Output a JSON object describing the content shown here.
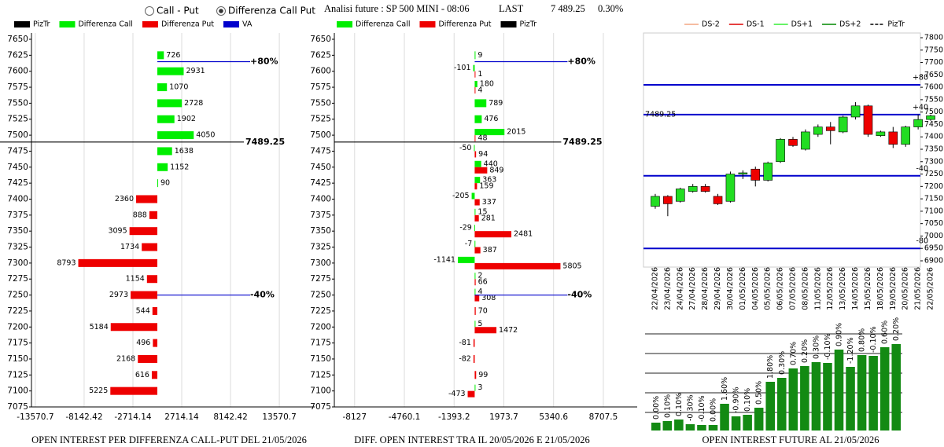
{
  "header": {
    "options": [
      "Call - Put",
      "Differenza Call Put"
    ],
    "selected": 1,
    "title": "Analisi future : SP 500 MINI - 08:06",
    "last_label": "LAST",
    "last": "7 489.25",
    "change": "0.30%"
  },
  "chart_data": [
    {
      "type": "bar",
      "orientation": "horizontal",
      "title": "OPEN INTEREST PER DIFFERENZA CALL-PUT  DEL 21/05/2026",
      "categories": [
        7650,
        7625,
        7600,
        7575,
        7550,
        7525,
        7500,
        7475,
        7450,
        7425,
        7400,
        7375,
        7350,
        7325,
        7300,
        7275,
        7250,
        7225,
        7200,
        7175,
        7150,
        7125,
        7100,
        7075
      ],
      "series": [
        {
          "name": "Differenza Call",
          "color": "#00ee00",
          "values": [
            null,
            726,
            2931,
            1070,
            2728,
            1902,
            4050,
            1638,
            1152,
            90,
            null,
            null,
            null,
            null,
            null,
            null,
            null,
            null,
            null,
            null,
            null,
            null,
            null,
            null
          ]
        },
        {
          "name": "Differenza Put",
          "color": "#ee0000",
          "values": [
            null,
            null,
            null,
            null,
            null,
            null,
            null,
            null,
            null,
            null,
            -2360,
            -888,
            -3095,
            -1734,
            -8793,
            -1154,
            -2973,
            -544,
            -5184,
            -496,
            -2168,
            -616,
            -5225,
            null
          ],
          "value_labels": [
            null,
            null,
            null,
            null,
            null,
            null,
            null,
            null,
            null,
            null,
            "2360",
            "888",
            "3095",
            "1734",
            "8793",
            "1154",
            "2973",
            "544",
            "5184",
            "496",
            "2168",
            "616",
            "5225",
            null
          ]
        }
      ],
      "lines": [
        {
          "name": "PizTr",
          "color": "#000000",
          "value": 7489.25
        },
        {
          "name": "VA",
          "color": "#0000cc",
          "levels": [
            {
              "label": "+80%",
              "value": 7615
            },
            {
              "label": "-40%",
              "value": 7250
            }
          ]
        }
      ],
      "legend": [
        "lines.0",
        "series.0",
        "series.1",
        "lines.1"
      ],
      "xlim": [
        -14000,
        17500
      ],
      "ylim": [
        7075,
        7650
      ],
      "xticks": [
        -13570.7,
        -8142.42,
        -2714.14,
        2714.14,
        8142.42,
        13570.7
      ],
      "grid": true
    },
    {
      "type": "bar",
      "orientation": "horizontal",
      "title": "DIFF. OPEN INTEREST TRA IL 20/05/2026 E 21/05/2026",
      "categories": [
        7650,
        7625,
        7600,
        7575,
        7550,
        7525,
        7500,
        7475,
        7450,
        7425,
        7400,
        7375,
        7350,
        7325,
        7300,
        7275,
        7250,
        7225,
        7200,
        7175,
        7150,
        7125,
        7100,
        7075
      ],
      "series": [
        {
          "name": "Differenza Call",
          "color": "#00ee00",
          "values": [
            null,
            9,
            -101,
            180,
            789,
            476,
            2015,
            -50,
            440,
            363,
            -205,
            15,
            -29,
            -7,
            -1141,
            2,
            4,
            null,
            5,
            null,
            null,
            null,
            3,
            null
          ]
        },
        {
          "name": "Differenza Put",
          "color": "#ee0000",
          "values": [
            null,
            null,
            1,
            4,
            null,
            null,
            48,
            94,
            849,
            159,
            337,
            281,
            2481,
            387,
            5805,
            66,
            308,
            70,
            1472,
            -81,
            -82,
            99,
            -473,
            null
          ]
        }
      ],
      "lines": [
        {
          "color": "#0000cc",
          "levels": [
            {
              "label": "+80%",
              "value": 7615
            },
            {
              "label": "-40%",
              "value": 7250
            }
          ]
        },
        {
          "name": "PizTr",
          "color": "#000000",
          "value": 7489.25
        }
      ],
      "legend": [
        "series.0",
        "series.1",
        "lines.1"
      ],
      "xlim": [
        -9500,
        11000
      ],
      "ylim": [
        7075,
        7650
      ],
      "xticks": [
        -8127,
        -4760.1,
        -1393.2,
        1973.7,
        5340.6,
        8707.5
      ],
      "grid": true
    },
    {
      "type": "candlestick",
      "x": [
        "22/04/2026",
        "23/04/2026",
        "24/04/2026",
        "27/04/2026",
        "28/04/2026",
        "29/04/2026",
        "30/04/2026",
        "01/05/2026",
        "04/05/2026",
        "05/05/2026",
        "06/05/2026",
        "07/05/2026",
        "08/05/2026",
        "11/05/2026",
        "12/05/2026",
        "13/05/2026",
        "14/05/2026",
        "15/05/2026",
        "18/05/2026",
        "19/05/2026",
        "20/05/2026",
        "21/05/2026",
        "22/05/2026"
      ],
      "open": [
        7120,
        7160,
        7140,
        7180,
        7200,
        7160,
        7140,
        7250,
        7270,
        7225,
        7300,
        7390,
        7350,
        7410,
        7440,
        7420,
        7480,
        7525,
        7405,
        7420,
        7370,
        7440,
        7470
      ],
      "high": [
        7170,
        7165,
        7195,
        7210,
        7210,
        7170,
        7260,
        7265,
        7280,
        7300,
        7395,
        7400,
        7430,
        7450,
        7460,
        7485,
        7540,
        7530,
        7425,
        7440,
        7445,
        7490,
        7490
      ],
      "low": [
        7110,
        7080,
        7135,
        7175,
        7175,
        7125,
        7135,
        7230,
        7200,
        7220,
        7295,
        7360,
        7345,
        7400,
        7370,
        7415,
        7470,
        7400,
        7400,
        7355,
        7360,
        7430,
        7465
      ],
      "close": [
        7160,
        7130,
        7190,
        7200,
        7180,
        7130,
        7250,
        7255,
        7225,
        7295,
        7390,
        7365,
        7420,
        7440,
        7425,
        7480,
        7525,
        7410,
        7420,
        7370,
        7440,
        7470,
        7485
      ],
      "up_color": "#22dd22",
      "down_color": "#ee0000",
      "levels_color": "#0000cc",
      "levels": [
        {
          "label": "+80",
          "value": 7610
        },
        {
          "label": "+40",
          "value": 7490
        },
        {
          "label": "-40",
          "value": 7243
        },
        {
          "label": "-80",
          "value": 6950
        }
      ],
      "piztr": 7489.25,
      "legend": [
        {
          "name": "DS-2",
          "color": "#f4a582"
        },
        {
          "name": "DS-1",
          "color": "#dd0000"
        },
        {
          "name": "DS+1",
          "color": "#33ee33"
        },
        {
          "name": "DS+2",
          "color": "#008800"
        },
        {
          "name": "PizTr",
          "color": "#000000",
          "dashed": true
        }
      ],
      "ylim": [
        6900,
        7800
      ],
      "yticks": [
        6900,
        6950,
        7000,
        7050,
        7100,
        7150,
        7200,
        7250,
        7300,
        7350,
        7400,
        7450,
        7500,
        7550,
        7600,
        7650,
        7700,
        7750,
        7800
      ]
    },
    {
      "type": "bar",
      "title": "OPEN INTEREST FUTURE AL 21/05/2026",
      "values": [
        10,
        12,
        14,
        8,
        7,
        7,
        34,
        18,
        20,
        29,
        62,
        67,
        79,
        82,
        87,
        86,
        103,
        81,
        96,
        95,
        106,
        110
      ],
      "labels": [
        "0.00%",
        "0.10%",
        "0.10%",
        "-0.30%",
        "-0.10%",
        "0.00%",
        "1.60%",
        "-0.90%",
        "0.10%",
        "0.50%",
        "1.80%",
        "0.30%",
        "0.70%",
        "0.20%",
        "0.30%",
        "-0.10%",
        "0.90%",
        "-1.20%",
        "0.80%",
        "-0.10%",
        "0.60%",
        "0.20%"
      ],
      "color": "#138a13",
      "ylim": [
        0,
        125
      ]
    }
  ]
}
